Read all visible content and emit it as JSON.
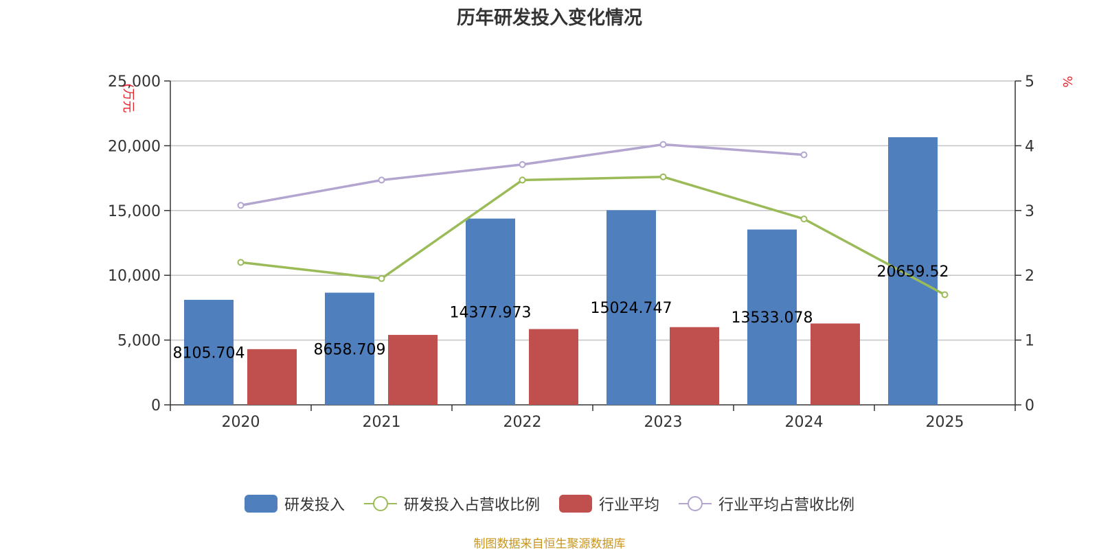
{
  "chart_data": {
    "type": "bar",
    "title": "历年研发投入变化情况",
    "categories": [
      "2020",
      "2021",
      "2022",
      "2023",
      "2024",
      "2025"
    ],
    "y_left": {
      "unit": "(万元",
      "ylim": [
        0,
        25000
      ],
      "ticks": [
        "0",
        "5,000",
        "10,000",
        "15,000",
        "20,000",
        "25,000"
      ],
      "tick_values": [
        0,
        5000,
        10000,
        15000,
        20000,
        25000
      ]
    },
    "y_right": {
      "unit": "%",
      "ylim": [
        0,
        5
      ],
      "ticks": [
        "0",
        "1",
        "2",
        "3",
        "4",
        "5"
      ],
      "tick_values": [
        0,
        1,
        2,
        3,
        4,
        5
      ]
    },
    "grid": true,
    "legend_position": "bottom",
    "series": [
      {
        "name": "研发投入",
        "kind": "bar",
        "axis": "left",
        "color": "#4f7fbd",
        "values": [
          8105.704,
          8658.709,
          14377.973,
          15024.747,
          13533.078,
          20659.52
        ],
        "labels": [
          "8105.704",
          "8658.709",
          "14377.973",
          "15024.747",
          "13533.078",
          "20659.52"
        ]
      },
      {
        "name": "研发投入占营收比例",
        "kind": "line",
        "axis": "right",
        "color": "#9bbb59",
        "values": [
          2.2,
          1.95,
          3.47,
          3.52,
          2.87,
          1.7
        ]
      },
      {
        "name": "行业平均",
        "kind": "bar",
        "axis": "left",
        "color": "#c0504d",
        "values": [
          4300,
          5400,
          5850,
          6000,
          6280,
          null
        ]
      },
      {
        "name": "行业平均占营收比例",
        "kind": "line",
        "axis": "right",
        "color": "#b3a5cf",
        "values": [
          3.08,
          3.47,
          3.71,
          4.02,
          3.86,
          null
        ]
      }
    ]
  },
  "source": "制图数据来自恒生聚源数据库"
}
